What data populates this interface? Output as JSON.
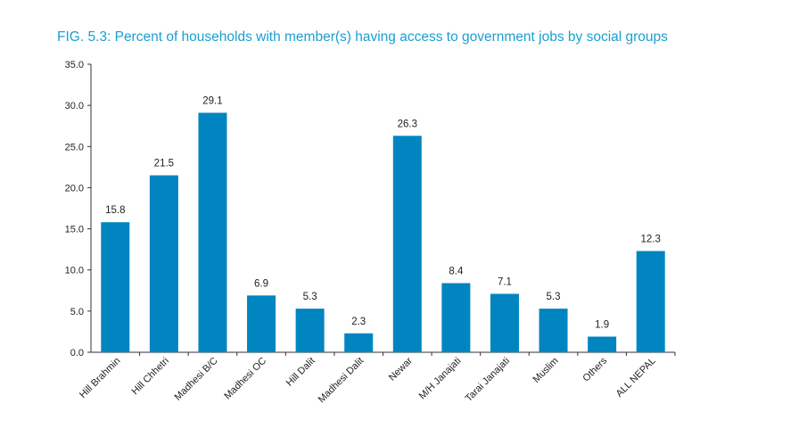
{
  "chart_data": {
    "type": "bar",
    "title": "FIG. 5.3: Percent of households with member(s) having access to government jobs by social groups",
    "categories": [
      "Hill Brahmin",
      "Hill Chhetri",
      "Madhesi B/C",
      "Madhesi OC",
      "Hill Dalit",
      "Madhesi Dalit",
      "Newar",
      "M/H Janajati",
      "Tarai Janajati",
      "Muslim",
      "Others",
      "ALL NEPAL"
    ],
    "values": [
      15.8,
      21.5,
      29.1,
      6.9,
      5.3,
      2.3,
      26.3,
      8.4,
      7.1,
      5.3,
      1.9,
      12.3
    ],
    "data_labels": [
      "15.8",
      "21.5",
      "29.1",
      "6.9",
      "5.3",
      "2.3",
      "26.3",
      "8.4",
      "7.1",
      "5.3",
      "1.9",
      "12.3"
    ],
    "y_ticks": [
      "0.0",
      "5.0",
      "10.0",
      "15.0",
      "20.0",
      "25.0",
      "30.0",
      "35.0"
    ],
    "ylim": [
      0,
      35
    ],
    "xlabel": "",
    "ylabel": "",
    "grid": false,
    "legend": "none",
    "bar_color": "#0085c0"
  }
}
